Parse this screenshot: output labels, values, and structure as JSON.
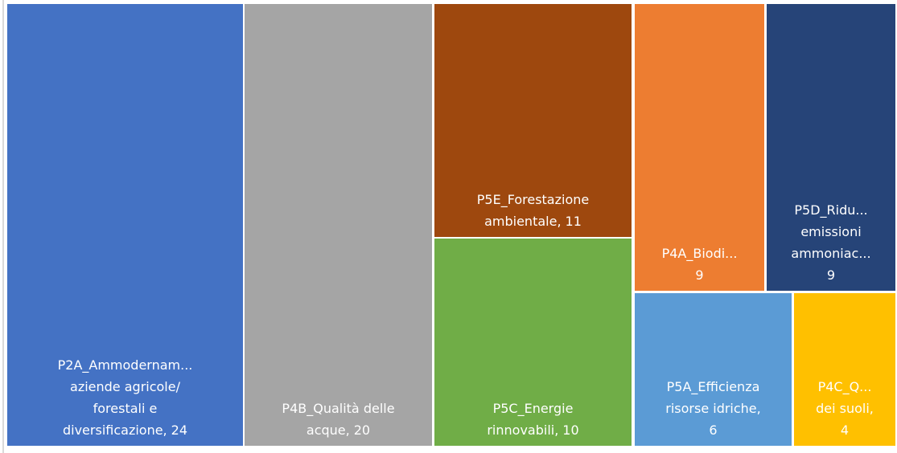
{
  "chart_data": {
    "type": "treemap",
    "categories": [
      [
        "P2A_Ammodernam...",
        "aziende agricole/",
        "forestali e",
        "diversificazione,"
      ],
      [
        "P4B_Qualità delle",
        "acque,"
      ],
      [
        "P5E_Forestazione",
        "ambientale,"
      ],
      [
        "P5C_Energie",
        "rinnovabili,"
      ],
      [
        "P4A_Biodi..."
      ],
      [
        "P5D_Ridu...",
        "emissioni",
        "ammoniac..."
      ],
      [
        "P5A_Efficienza",
        "risorse idriche,"
      ],
      [
        "P4C_Q...",
        "dei suoli,"
      ]
    ],
    "values": [
      24,
      20,
      11,
      10,
      9,
      9,
      6,
      4
    ],
    "colors": [
      "#4472c4",
      "#a5a5a5",
      "#9e480e",
      "#70ad47",
      "#ed7d31",
      "#264478",
      "#5b9bd5",
      "#ffc000"
    ]
  }
}
